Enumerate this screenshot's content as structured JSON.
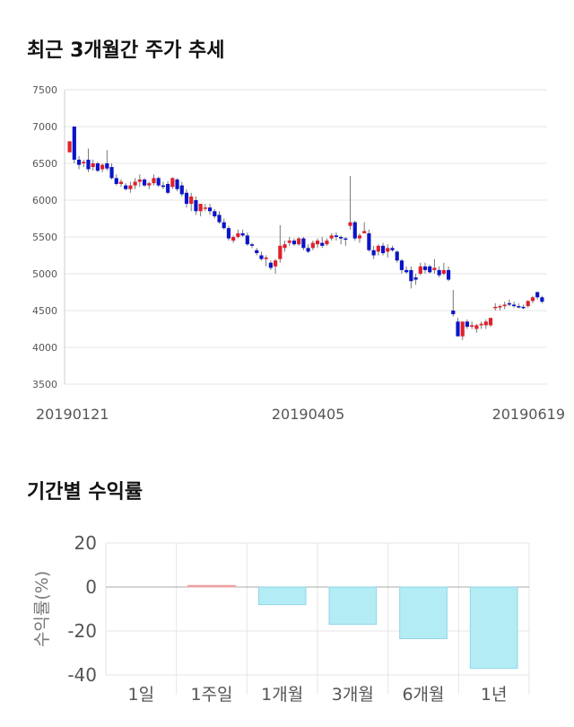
{
  "candle_section": {
    "title": "최근 3개월간 주가 추세"
  },
  "returns_section": {
    "title": "기간별 수익률"
  },
  "colors": {
    "up": "#e0202b",
    "down": "#0a14c8",
    "bar_positive": "#f4b6b6",
    "bar_negative": "#b3ecf5",
    "grid": "#e6e6e6",
    "axis_text": "#555555"
  },
  "chart_data": [
    {
      "type": "candlestick",
      "title": "최근 3개월간 주가 추세",
      "ylim": [
        3500,
        7500
      ],
      "y_ticks": [
        3500,
        4000,
        4500,
        5000,
        5500,
        6000,
        6500,
        7000,
        7500
      ],
      "x_tick_labels": [
        "20190121",
        "20190405",
        "20190619"
      ],
      "x_tick_indices": [
        0,
        51,
        104
      ],
      "grid": true,
      "ohlc": [
        [
          6650,
          6800,
          6650,
          6800
        ],
        [
          7000,
          7000,
          6500,
          6550
        ],
        [
          6550,
          6600,
          6420,
          6480
        ],
        [
          6500,
          6550,
          6450,
          6520
        ],
        [
          6550,
          6700,
          6380,
          6420
        ],
        [
          6450,
          6550,
          6400,
          6500
        ],
        [
          6500,
          6520,
          6380,
          6400
        ],
        [
          6420,
          6500,
          6380,
          6480
        ],
        [
          6500,
          6680,
          6400,
          6430
        ],
        [
          6450,
          6500,
          6280,
          6300
        ],
        [
          6300,
          6350,
          6200,
          6220
        ],
        [
          6220,
          6280,
          6180,
          6250
        ],
        [
          6200,
          6230,
          6130,
          6150
        ],
        [
          6150,
          6250,
          6100,
          6200
        ],
        [
          6200,
          6300,
          6150,
          6250
        ],
        [
          6250,
          6350,
          6180,
          6280
        ],
        [
          6280,
          6300,
          6180,
          6200
        ],
        [
          6200,
          6250,
          6150,
          6230
        ],
        [
          6230,
          6350,
          6200,
          6300
        ],
        [
          6300,
          6320,
          6180,
          6200
        ],
        [
          6200,
          6250,
          6150,
          6180
        ],
        [
          6220,
          6260,
          6080,
          6100
        ],
        [
          6180,
          6310,
          6150,
          6300
        ],
        [
          6280,
          6300,
          6120,
          6150
        ],
        [
          6200,
          6250,
          6050,
          6080
        ],
        [
          6100,
          6150,
          5900,
          5950
        ],
        [
          5950,
          6100,
          5850,
          6050
        ],
        [
          6000,
          6050,
          5800,
          5850
        ],
        [
          5850,
          5950,
          5780,
          5950
        ],
        [
          5900,
          5950,
          5850,
          5900
        ],
        [
          5900,
          5950,
          5800,
          5850
        ],
        [
          5850,
          5880,
          5750,
          5780
        ],
        [
          5800,
          5850,
          5680,
          5700
        ],
        [
          5700,
          5750,
          5600,
          5620
        ],
        [
          5620,
          5650,
          5450,
          5480
        ],
        [
          5450,
          5520,
          5420,
          5500
        ],
        [
          5500,
          5600,
          5480,
          5550
        ],
        [
          5550,
          5600,
          5500,
          5520
        ],
        [
          5520,
          5560,
          5380,
          5400
        ],
        [
          5400,
          5420,
          5350,
          5380
        ],
        [
          5320,
          5350,
          5250,
          5280
        ],
        [
          5250,
          5300,
          5180,
          5200
        ],
        [
          5200,
          5250,
          5100,
          5220
        ],
        [
          5150,
          5180,
          5050,
          5080
        ],
        [
          5100,
          5200,
          5000,
          5180
        ],
        [
          5200,
          5660,
          5150,
          5380
        ],
        [
          5350,
          5450,
          5300,
          5400
        ],
        [
          5420,
          5500,
          5380,
          5450
        ],
        [
          5450,
          5480,
          5380,
          5400
        ],
        [
          5400,
          5500,
          5380,
          5480
        ],
        [
          5480,
          5500,
          5320,
          5350
        ],
        [
          5350,
          5400,
          5280,
          5300
        ],
        [
          5350,
          5450,
          5320,
          5420
        ],
        [
          5400,
          5480,
          5350,
          5450
        ],
        [
          5420,
          5500,
          5350,
          5380
        ],
        [
          5400,
          5480,
          5380,
          5450
        ],
        [
          5480,
          5550,
          5450,
          5520
        ],
        [
          5520,
          5560,
          5450,
          5500
        ],
        [
          5500,
          5520,
          5400,
          5480
        ],
        [
          5480,
          5500,
          5380,
          5470
        ],
        [
          5650,
          6330,
          5600,
          5700
        ],
        [
          5700,
          5720,
          5450,
          5480
        ],
        [
          5480,
          5550,
          5420,
          5520
        ],
        [
          5550,
          5700,
          5550,
          5580
        ],
        [
          5550,
          5600,
          5300,
          5320
        ],
        [
          5320,
          5380,
          5200,
          5250
        ],
        [
          5300,
          5400,
          5250,
          5380
        ],
        [
          5380,
          5420,
          5250,
          5280
        ],
        [
          5300,
          5400,
          5220,
          5350
        ],
        [
          5350,
          5380,
          5300,
          5320
        ],
        [
          5300,
          5320,
          5150,
          5180
        ],
        [
          5180,
          5200,
          5000,
          5050
        ],
        [
          5050,
          5100,
          5000,
          5020
        ],
        [
          5050,
          5100,
          4800,
          4900
        ],
        [
          4950,
          5000,
          4850,
          4920
        ],
        [
          5000,
          5150,
          4980,
          5100
        ],
        [
          5100,
          5150,
          5000,
          5050
        ],
        [
          5100,
          5120,
          5000,
          5020
        ],
        [
          5050,
          5200,
          5000,
          5080
        ],
        [
          5050,
          5100,
          4950,
          4980
        ],
        [
          5000,
          5150,
          4980,
          5050
        ],
        [
          5050,
          5100,
          4900,
          4920
        ],
        [
          4500,
          4780,
          4420,
          4450
        ],
        [
          4350,
          4400,
          4150,
          4150
        ],
        [
          4150,
          4350,
          4100,
          4350
        ],
        [
          4350,
          4380,
          4250,
          4280
        ],
        [
          4280,
          4350,
          4250,
          4300
        ],
        [
          4250,
          4320,
          4200,
          4300
        ],
        [
          4300,
          4350,
          4250,
          4320
        ],
        [
          4300,
          4380,
          4250,
          4350
        ],
        [
          4300,
          4400,
          4280,
          4400
        ],
        [
          4550,
          4600,
          4500,
          4550
        ],
        [
          4550,
          4580,
          4500,
          4560
        ],
        [
          4560,
          4620,
          4520,
          4580
        ],
        [
          4600,
          4650,
          4560,
          4580
        ],
        [
          4580,
          4620,
          4540,
          4560
        ],
        [
          4560,
          4600,
          4530,
          4550
        ],
        [
          4550,
          4580,
          4520,
          4540
        ],
        [
          4560,
          4640,
          4540,
          4630
        ],
        [
          4630,
          4700,
          4600,
          4680
        ],
        [
          4750,
          4760,
          4650,
          4680
        ],
        [
          4680,
          4700,
          4600,
          4620
        ]
      ]
    },
    {
      "type": "bar",
      "categories": [
        "1일",
        "1주일",
        "1개월",
        "3개월",
        "6개월",
        "1년"
      ],
      "values": [
        0,
        0.7,
        -8,
        -17,
        -23.5,
        -37
      ],
      "ylabel": "수익률(%)",
      "ylim": [
        -40,
        20
      ],
      "y_ticks": [
        20,
        0,
        -20,
        -40
      ],
      "grid": true
    }
  ]
}
